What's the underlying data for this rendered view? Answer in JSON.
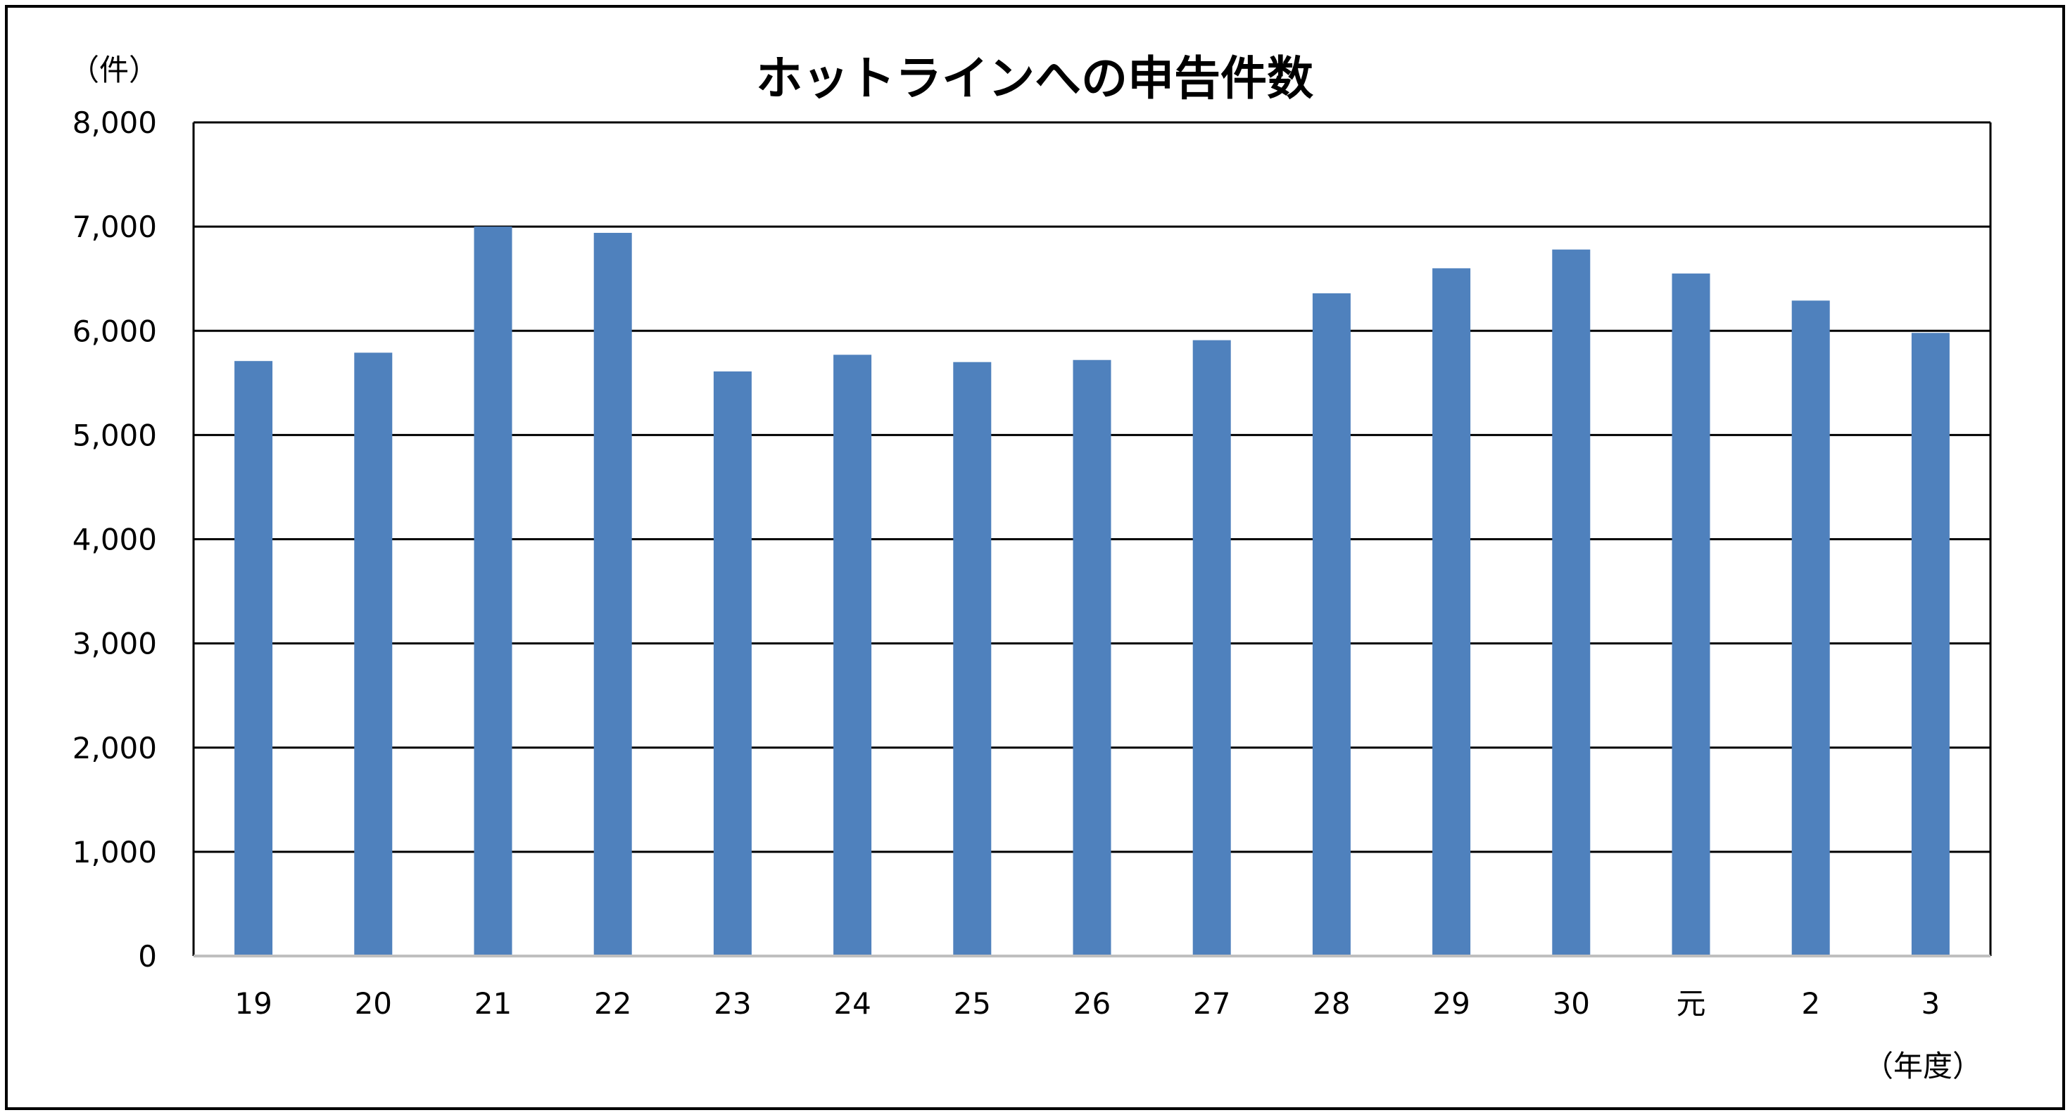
{
  "chart_data": {
    "type": "bar",
    "title": "ホットラインへの申告件数",
    "ylabel": "（件）",
    "xlabel": "（年度）",
    "categories": [
      "19",
      "20",
      "21",
      "22",
      "23",
      "24",
      "25",
      "26",
      "27",
      "28",
      "29",
      "30",
      "元",
      "2",
      "3"
    ],
    "values": [
      5710,
      5790,
      7000,
      6940,
      5610,
      5770,
      5700,
      5720,
      5910,
      6360,
      6600,
      6780,
      6550,
      6290,
      5980
    ],
    "ylim": [
      0,
      8000
    ],
    "yticks": [
      0,
      1000,
      2000,
      3000,
      4000,
      5000,
      6000,
      7000,
      8000
    ],
    "ytick_labels": [
      "0",
      "1,000",
      "2,000",
      "3,000",
      "4,000",
      "5,000",
      "6,000",
      "7,000",
      "8,000"
    ],
    "grid": true,
    "legend": "none",
    "colors": {
      "bar": "#4F81BD",
      "grid": "#000000",
      "axis": "#BFBFBF",
      "frame": "#000000"
    }
  }
}
